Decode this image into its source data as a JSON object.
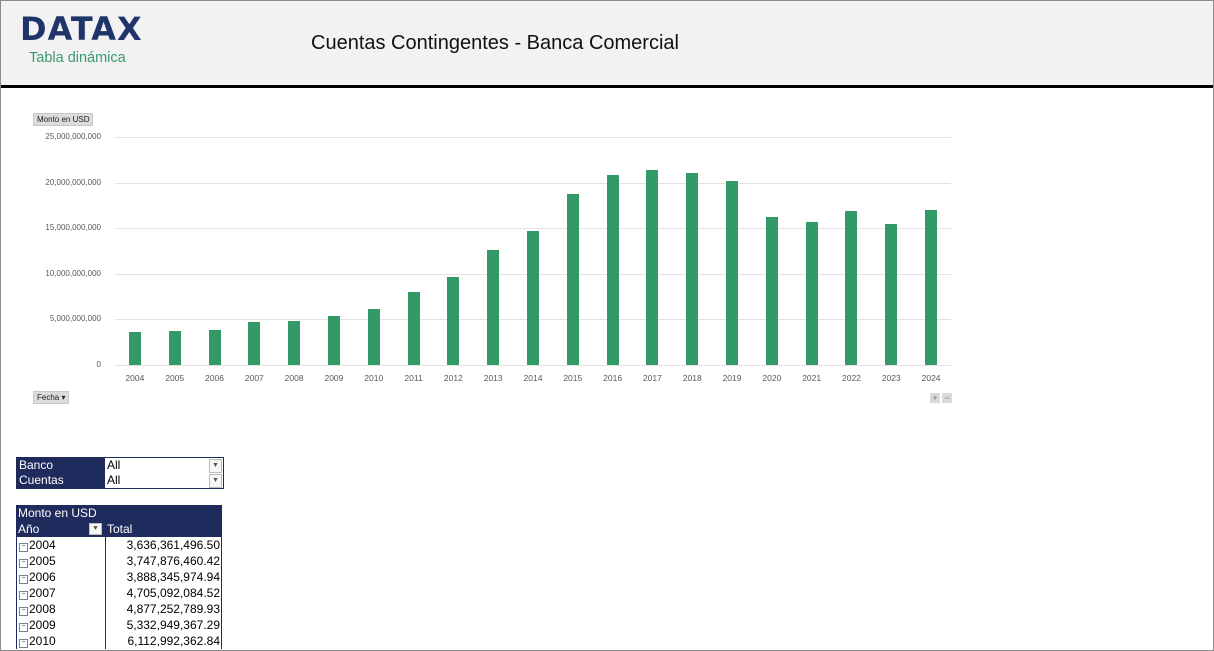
{
  "header": {
    "logo": "DATAX",
    "subtitle": "Tabla dinámica",
    "title": "Cuentas Contingentes - Banca Comercial"
  },
  "chart": {
    "value_field_button": "Monto en USD",
    "axis_field_button": "Fecha ▾",
    "zoom_in": "+",
    "zoom_out": "−",
    "bar_color": "#339966"
  },
  "chart_data": {
    "type": "bar",
    "title": "",
    "xlabel": "",
    "ylabel": "Monto en USD",
    "ylim": [
      0,
      25000000000
    ],
    "yticks": [
      "0",
      "5,000,000,000",
      "10,000,000,000",
      "15,000,000,000",
      "20,000,000,000",
      "25,000,000,000"
    ],
    "grid": true,
    "legend": "none",
    "categories": [
      "2004",
      "2005",
      "2006",
      "2007",
      "2008",
      "2009",
      "2010",
      "2011",
      "2012",
      "2013",
      "2014",
      "2015",
      "2016",
      "2017",
      "2018",
      "2019",
      "2020",
      "2021",
      "2022",
      "2023",
      "2024"
    ],
    "values": [
      3636361496.5,
      3747876460.42,
      3888345974.94,
      4705092084.52,
      4877252789.93,
      5332949367.29,
      6112992362.84,
      8000000000,
      9650000000,
      12600000000,
      14700000000,
      18750000000,
      20800000000,
      21400000000,
      21000000000,
      20200000000,
      16250000000,
      15700000000,
      16900000000,
      15500000000,
      17000000000
    ]
  },
  "filters": [
    {
      "label": "Banco",
      "value": "All"
    },
    {
      "label": "Cuentas",
      "value": "All"
    }
  ],
  "pivot": {
    "value_header": "Monto en USD",
    "row_header": "Año",
    "col_header": "Total",
    "rows": [
      {
        "year": "2004",
        "total": "3,636,361,496.50"
      },
      {
        "year": "2005",
        "total": "3,747,876,460.42"
      },
      {
        "year": "2006",
        "total": "3,888,345,974.94"
      },
      {
        "year": "2007",
        "total": "4,705,092,084.52"
      },
      {
        "year": "2008",
        "total": "4,877,252,789.93"
      },
      {
        "year": "2009",
        "total": "5,332,949,367.29"
      },
      {
        "year": "2010",
        "total": "6,112,992,362.84"
      }
    ]
  }
}
